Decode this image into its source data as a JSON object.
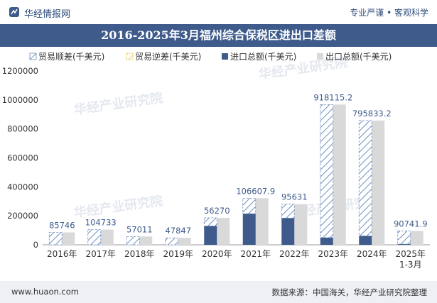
{
  "header": {
    "brand": "华经情报网",
    "slogan": "专业严谨 • 客观科学"
  },
  "footer": {
    "site": "www.huaon.com",
    "source": "数据来源：中国海关，华经产业研究院整理"
  },
  "watermark": "华经产业研究院",
  "colors": {
    "title_bg": "#3e5b8c",
    "surplus": "#4e6f9e",
    "deficit": "#e8d36a",
    "import": "#3e5b8c",
    "export": "#d9d9d9",
    "hatch": "#6f8fc0"
  },
  "chart_data": {
    "type": "bar",
    "title": "2016-2025年3月福州综合保税区进出口差额",
    "categories": [
      "2016年",
      "2017年",
      "2018年",
      "2019年",
      "2020年",
      "2021年",
      "2022年",
      "2023年",
      "2024年",
      "2025年\n1-3月"
    ],
    "series": [
      {
        "name": "贸易顺差(千美元)",
        "values": [
          85746,
          104733,
          57011,
          47847,
          56270,
          106607.9,
          95631,
          918115.2,
          795833.2,
          90741.9
        ]
      },
      {
        "name": "贸易逆差(千美元)",
        "values": [
          0,
          0,
          0,
          0,
          0,
          0,
          0,
          0,
          0,
          0
        ]
      },
      {
        "name": "进口总额(千美元)",
        "values": [
          0,
          0,
          0,
          0,
          130000,
          215000,
          185000,
          50000,
          62000,
          5000
        ]
      },
      {
        "name": "出口总额(千美元)",
        "values": [
          85746,
          104733,
          57011,
          47847,
          186270,
          321607.9,
          280631,
          968115.2,
          857833.2,
          95741.9
        ]
      }
    ],
    "data_labels": [
      "85746",
      "104733",
      "57011",
      "47847",
      "56270",
      "106607.9",
      "95631",
      "918115.2",
      "795833.2",
      "90741.9"
    ],
    "yticks": [
      "0",
      "200000",
      "400000",
      "600000",
      "800000",
      "1000000",
      "1200000"
    ],
    "ylim": [
      0,
      1200000
    ],
    "legend": "top"
  }
}
